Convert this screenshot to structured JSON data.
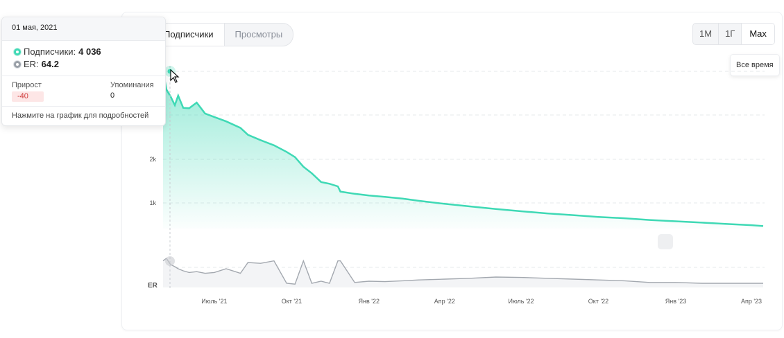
{
  "tabs": {
    "subscribers_label": "Подписчики",
    "views_label": "Просмотры"
  },
  "range": {
    "m1": "1М",
    "y1": "1Г",
    "max": "Max",
    "max_tooltip": "Все время"
  },
  "tooltip": {
    "date": "01 мая, 2021",
    "subs_label": "Подписчики:",
    "subs_value": "4 036",
    "er_label": "ER:",
    "er_value": "64.2",
    "growth_label": "Прирост",
    "growth_value": "-40",
    "mentions_label": "Упоминания",
    "mentions_value": "0",
    "hint": "Нажмите на график для подробностей"
  },
  "colors": {
    "subscribers": "#3fd9b5",
    "er": "#9aa0a8",
    "negative": "#cf3b3b"
  },
  "chart_data": {
    "type": "area",
    "x_ticks": [
      "Июль '21",
      "Окт '21",
      "Янв '22",
      "Апр '22",
      "Июль '22",
      "Окт '22",
      "Янв '23",
      "Апр '23"
    ],
    "x": [
      "2021-05-01",
      "2021-05-05",
      "2021-05-10",
      "2021-05-15",
      "2021-05-19",
      "2021-05-25",
      "2021-06-01",
      "2021-06-10",
      "2021-06-20",
      "2021-07-01",
      "2021-07-15",
      "2021-08-01",
      "2021-08-10",
      "2021-08-25",
      "2021-09-10",
      "2021-09-25",
      "2021-10-05",
      "2021-10-15",
      "2021-10-25",
      "2021-11-05",
      "2021-11-15",
      "2021-11-25",
      "2021-11-28",
      "2021-12-15",
      "2022-01-01",
      "2022-01-20",
      "2022-02-10",
      "2022-03-01",
      "2022-04-01",
      "2022-05-01",
      "2022-06-01",
      "2022-07-01",
      "2022-08-01",
      "2022-09-01",
      "2022-10-01",
      "2022-11-01",
      "2022-12-01",
      "2023-01-01",
      "2023-02-01",
      "2023-03-01",
      "2023-04-01",
      "2023-04-15"
    ],
    "series": [
      {
        "name": "Подписчики",
        "values": [
          4036,
          3600,
          3440,
          3240,
          3460,
          3180,
          3170,
          3300,
          3050,
          2970,
          2870,
          2720,
          2560,
          2440,
          2320,
          2170,
          2050,
          1830,
          1680,
          1480,
          1440,
          1380,
          1260,
          1210,
          1170,
          1140,
          1100,
          1050,
          980,
          920,
          860,
          810,
          760,
          720,
          680,
          650,
          610,
          580,
          550,
          520,
          490,
          470
        ]
      },
      {
        "name": "ER",
        "values": [
          64,
          70,
          55,
          50,
          45,
          40,
          36,
          38,
          34,
          36,
          45,
          34,
          60,
          58,
          64,
          10,
          8,
          64,
          10,
          15,
          10,
          64,
          64,
          12,
          15,
          14,
          16,
          18,
          20,
          22,
          25,
          24,
          22,
          20,
          18,
          16,
          12,
          12,
          10,
          10,
          10,
          10
        ]
      }
    ],
    "y_ticks": [
      "1k",
      "2k"
    ],
    "er_axis_label": "ER"
  }
}
